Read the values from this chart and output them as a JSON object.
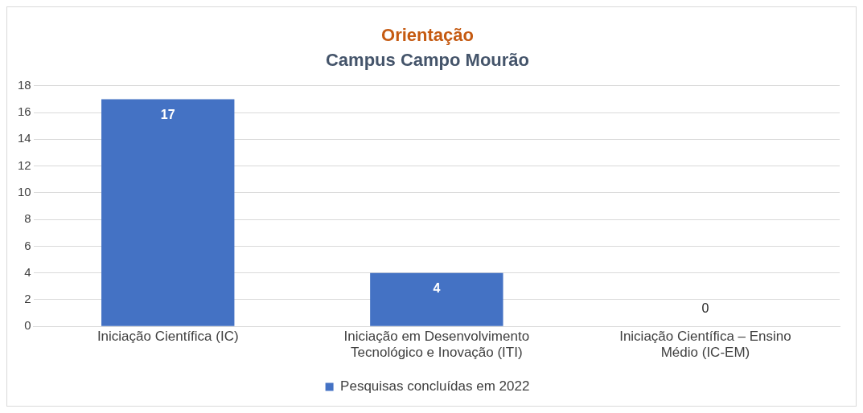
{
  "chart_data": {
    "type": "bar",
    "title": "Orientação",
    "subtitle": "Campus Campo Mourão",
    "categories": [
      "Iniciação Científica (IC)",
      "Iniciação em Desenvolvimento Tecnológico e Inovação (ITI)",
      "Iniciação Científica – Ensino Médio (IC-EM)"
    ],
    "series": [
      {
        "name": "Pesquisas concluídas em 2022",
        "color": "#4472c4",
        "values": [
          17,
          4,
          0
        ]
      }
    ],
    "ylim": [
      0,
      18
    ],
    "yticks": [
      0,
      2,
      4,
      6,
      8,
      10,
      12,
      14,
      16,
      18
    ],
    "grid": "y",
    "legend": "bottom",
    "data_labels": true
  }
}
